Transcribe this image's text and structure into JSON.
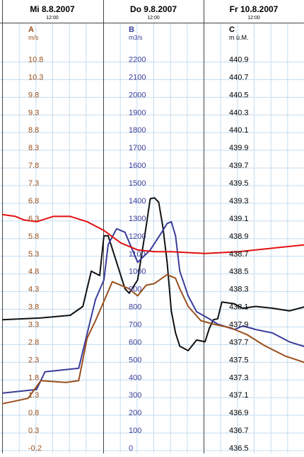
{
  "chart_data": {
    "type": "line",
    "x_range": [
      "2007-08-08T00:00",
      "2007-08-11T00:00"
    ],
    "day_headers": [
      {
        "date": "2007-08-08",
        "label": "Mi  8.8.2007",
        "noon_label": "12:00"
      },
      {
        "date": "2007-08-09",
        "label": "Do  9.8.2007",
        "noon_label": "12:00"
      },
      {
        "date": "2007-08-10",
        "label": "Fr  10.8.2007",
        "noon_label": "12:00"
      }
    ],
    "axes": [
      {
        "id": "A",
        "name": "A",
        "unit": "m/s",
        "color": "#9a4f1c",
        "range": [
          -0.2,
          11.5
        ],
        "ticks": [
          "10.8",
          "10.3",
          "9.8",
          "9.3",
          "8.8",
          "8.3",
          "7.8",
          "7.3",
          "6.8",
          "6.3",
          "5.8",
          "5.3",
          "4.8",
          "4.3",
          "3.8",
          "3.3",
          "2.8",
          "2.3",
          "1.8",
          "1.3",
          "0.8",
          "0.3",
          "-0.2"
        ]
      },
      {
        "id": "B",
        "name": "B",
        "unit": "m3/s",
        "color": "#3a3d9a",
        "range": [
          0,
          2340
        ],
        "ticks": [
          "2200",
          "2100",
          "2000",
          "1900",
          "1800",
          "1700",
          "1600",
          "1500",
          "1400",
          "1300",
          "1200",
          "1100",
          "1000",
          "900",
          "800",
          "700",
          "600",
          "500",
          "400",
          "300",
          "200",
          "100",
          "0"
        ]
      },
      {
        "id": "C",
        "name": "C",
        "unit": "m ü.M.",
        "color": "#000000",
        "range": [
          436.5,
          441.18
        ],
        "ticks": [
          "440.9",
          "440.7",
          "440.5",
          "440.3",
          "440.1",
          "439.9",
          "439.7",
          "439.5",
          "439.3",
          "439.1",
          "438.9",
          "438.7",
          "438.5",
          "438.3",
          "438.1",
          "437.9",
          "437.7",
          "437.5",
          "437.3",
          "437.1",
          "436.9",
          "436.7",
          "436.5"
        ]
      }
    ],
    "series": [
      {
        "axis": "C",
        "color": "#111111",
        "x": [
          "2007-08-08T00:00",
          "2007-08-08T09:00",
          "2007-08-08T16:00",
          "2007-08-08T19:00",
          "2007-08-08T21:00",
          "2007-08-08T23:00",
          "2007-08-09T00:00",
          "2007-08-09T01:00",
          "2007-08-09T03:00",
          "2007-08-09T05:00",
          "2007-08-09T06:00",
          "2007-08-09T08:00",
          "2007-08-09T09:00",
          "2007-08-09T10:00",
          "2007-08-09T11:00",
          "2007-08-09T12:00",
          "2007-08-09T13:00",
          "2007-08-09T14:00",
          "2007-08-09T15:00",
          "2007-08-09T16:00",
          "2007-08-09T17:00",
          "2007-08-09T18:00",
          "2007-08-09T20:00",
          "2007-08-09T22:00",
          "2007-08-10T00:00",
          "2007-08-10T01:00",
          "2007-08-10T02:00",
          "2007-08-10T03:00",
          "2007-08-10T04:00",
          "2007-08-10T07:00",
          "2007-08-10T08:00",
          "2007-08-10T09:00",
          "2007-08-10T12:00",
          "2007-08-10T16:00",
          "2007-08-10T20:00",
          "2007-08-11T00:00"
        ],
        "y": [
          437.95,
          437.97,
          438.0,
          438.1,
          438.5,
          438.45,
          438.9,
          438.9,
          438.6,
          438.3,
          438.25,
          438.4,
          438.7,
          439.0,
          439.32,
          439.33,
          439.28,
          439.0,
          438.6,
          438.05,
          437.8,
          437.65,
          437.6,
          437.72,
          437.7,
          437.85,
          437.95,
          437.96,
          438.15,
          438.13,
          438.1,
          438.08,
          438.1,
          438.08,
          438.05,
          438.1
        ]
      },
      {
        "axis": "B",
        "color": "#3a3d9a",
        "x": [
          "2007-08-08T00:00",
          "2007-08-08T08:00",
          "2007-08-08T10:00",
          "2007-08-08T18:00",
          "2007-08-08T22:00",
          "2007-08-09T00:00",
          "2007-08-09T01:00",
          "2007-08-09T03:00",
          "2007-08-09T05:00",
          "2007-08-09T08:00",
          "2007-08-09T11:00",
          "2007-08-09T14:00",
          "2007-08-09T15:00",
          "2007-08-09T16:00",
          "2007-08-09T17:00",
          "2007-08-09T18:00",
          "2007-08-09T20:00",
          "2007-08-09T22:00",
          "2007-08-10T01:00",
          "2007-08-10T03:00",
          "2007-08-10T07:00",
          "2007-08-10T09:00",
          "2007-08-10T12:00",
          "2007-08-10T16:00",
          "2007-08-10T20:00",
          "2007-08-11T00:00"
        ],
        "y": [
          310,
          330,
          430,
          450,
          840,
          950,
          1150,
          1240,
          1220,
          1050,
          1120,
          1230,
          1270,
          1280,
          1200,
          1000,
          860,
          770,
          730,
          700,
          670,
          690,
          670,
          650,
          600,
          570
        ]
      },
      {
        "axis": "B",
        "color": "#e01010",
        "x": [
          "2007-08-08T00:00",
          "2007-08-08T03:00",
          "2007-08-08T05:00",
          "2007-08-08T08:00",
          "2007-08-08T12:00",
          "2007-08-08T16:00",
          "2007-08-08T20:00",
          "2007-08-09T00:00",
          "2007-08-09T04:00",
          "2007-08-09T08:00",
          "2007-08-09T12:00",
          "2007-08-09T16:00",
          "2007-08-10T00:00",
          "2007-08-10T08:00",
          "2007-08-10T16:00",
          "2007-08-11T00:00"
        ],
        "y": [
          1320,
          1310,
          1290,
          1280,
          1310,
          1310,
          1280,
          1230,
          1160,
          1120,
          1110,
          1110,
          1100,
          1110,
          1130,
          1150
        ]
      },
      {
        "axis": "A",
        "color": "#9a4f1c",
        "x": [
          "2007-08-08T00:00",
          "2007-08-08T06:00",
          "2007-08-08T09:00",
          "2007-08-08T15:00",
          "2007-08-08T18:00",
          "2007-08-08T20:00",
          "2007-08-08T22:00",
          "2007-08-09T00:00",
          "2007-08-09T02:00",
          "2007-08-09T03:00",
          "2007-08-09T06:00",
          "2007-08-09T08:00",
          "2007-08-09T10:00",
          "2007-08-09T12:00",
          "2007-08-09T15:00",
          "2007-08-09T17:00",
          "2007-08-09T18:00",
          "2007-08-09T20:00",
          "2007-08-09T23:00",
          "2007-08-10T02:00",
          "2007-08-10T06:00",
          "2007-08-10T10:00",
          "2007-08-10T14:00",
          "2007-08-10T19:00",
          "2007-08-11T00:00"
        ],
        "y": [
          1.05,
          1.2,
          1.7,
          1.65,
          1.7,
          2.9,
          3.4,
          3.95,
          4.5,
          4.45,
          4.3,
          4.1,
          4.4,
          4.45,
          4.7,
          4.6,
          4.3,
          3.8,
          3.4,
          3.3,
          3.2,
          3.0,
          2.7,
          2.4,
          2.2
        ]
      }
    ]
  }
}
